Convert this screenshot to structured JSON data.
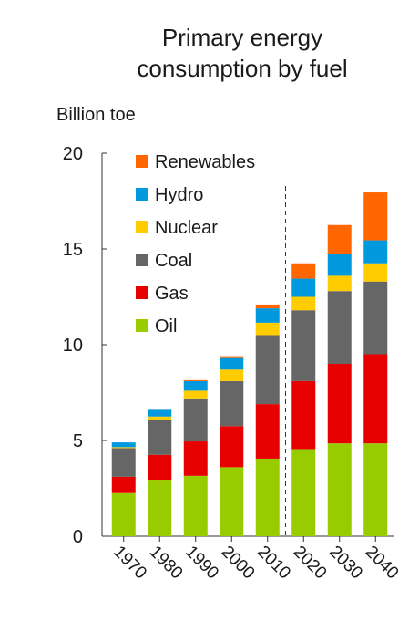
{
  "chart_data": {
    "type": "bar",
    "stacked": true,
    "title_lines": [
      "Primary energy",
      "consumption by fuel"
    ],
    "ylabel": "Billion toe",
    "xlabel": "",
    "categories": [
      "1970",
      "1980",
      "1990",
      "2000",
      "2010",
      "2020",
      "2030",
      "2040"
    ],
    "ylim": [
      0,
      20
    ],
    "yticks": [
      0,
      5,
      10,
      15,
      20
    ],
    "grid": false,
    "legend_position": "top-left",
    "projection_divider_between": [
      "2010",
      "2020"
    ],
    "series": [
      {
        "name": "Oil",
        "color": "#99cc00",
        "values": [
          2.25,
          2.95,
          3.15,
          3.6,
          4.05,
          4.55,
          4.85,
          4.85
        ]
      },
      {
        "name": "Gas",
        "color": "#e60000",
        "values": [
          0.85,
          1.3,
          1.8,
          2.15,
          2.85,
          3.55,
          4.15,
          4.65
        ]
      },
      {
        "name": "Coal",
        "color": "#666666",
        "values": [
          1.5,
          1.8,
          2.2,
          2.35,
          3.6,
          3.7,
          3.8,
          3.8
        ]
      },
      {
        "name": "Nuclear",
        "color": "#ffcc00",
        "values": [
          0.05,
          0.2,
          0.45,
          0.6,
          0.65,
          0.7,
          0.8,
          0.95
        ]
      },
      {
        "name": "Hydro",
        "color": "#0099dd",
        "values": [
          0.25,
          0.35,
          0.5,
          0.6,
          0.75,
          0.95,
          1.15,
          1.2
        ]
      },
      {
        "name": "Renewables",
        "color": "#ff6600",
        "values": [
          0.0,
          0.0,
          0.05,
          0.1,
          0.2,
          0.8,
          1.5,
          2.5
        ]
      }
    ],
    "legend_order": [
      "Renewables",
      "Hydro",
      "Nuclear",
      "Coal",
      "Gas",
      "Oil"
    ]
  }
}
